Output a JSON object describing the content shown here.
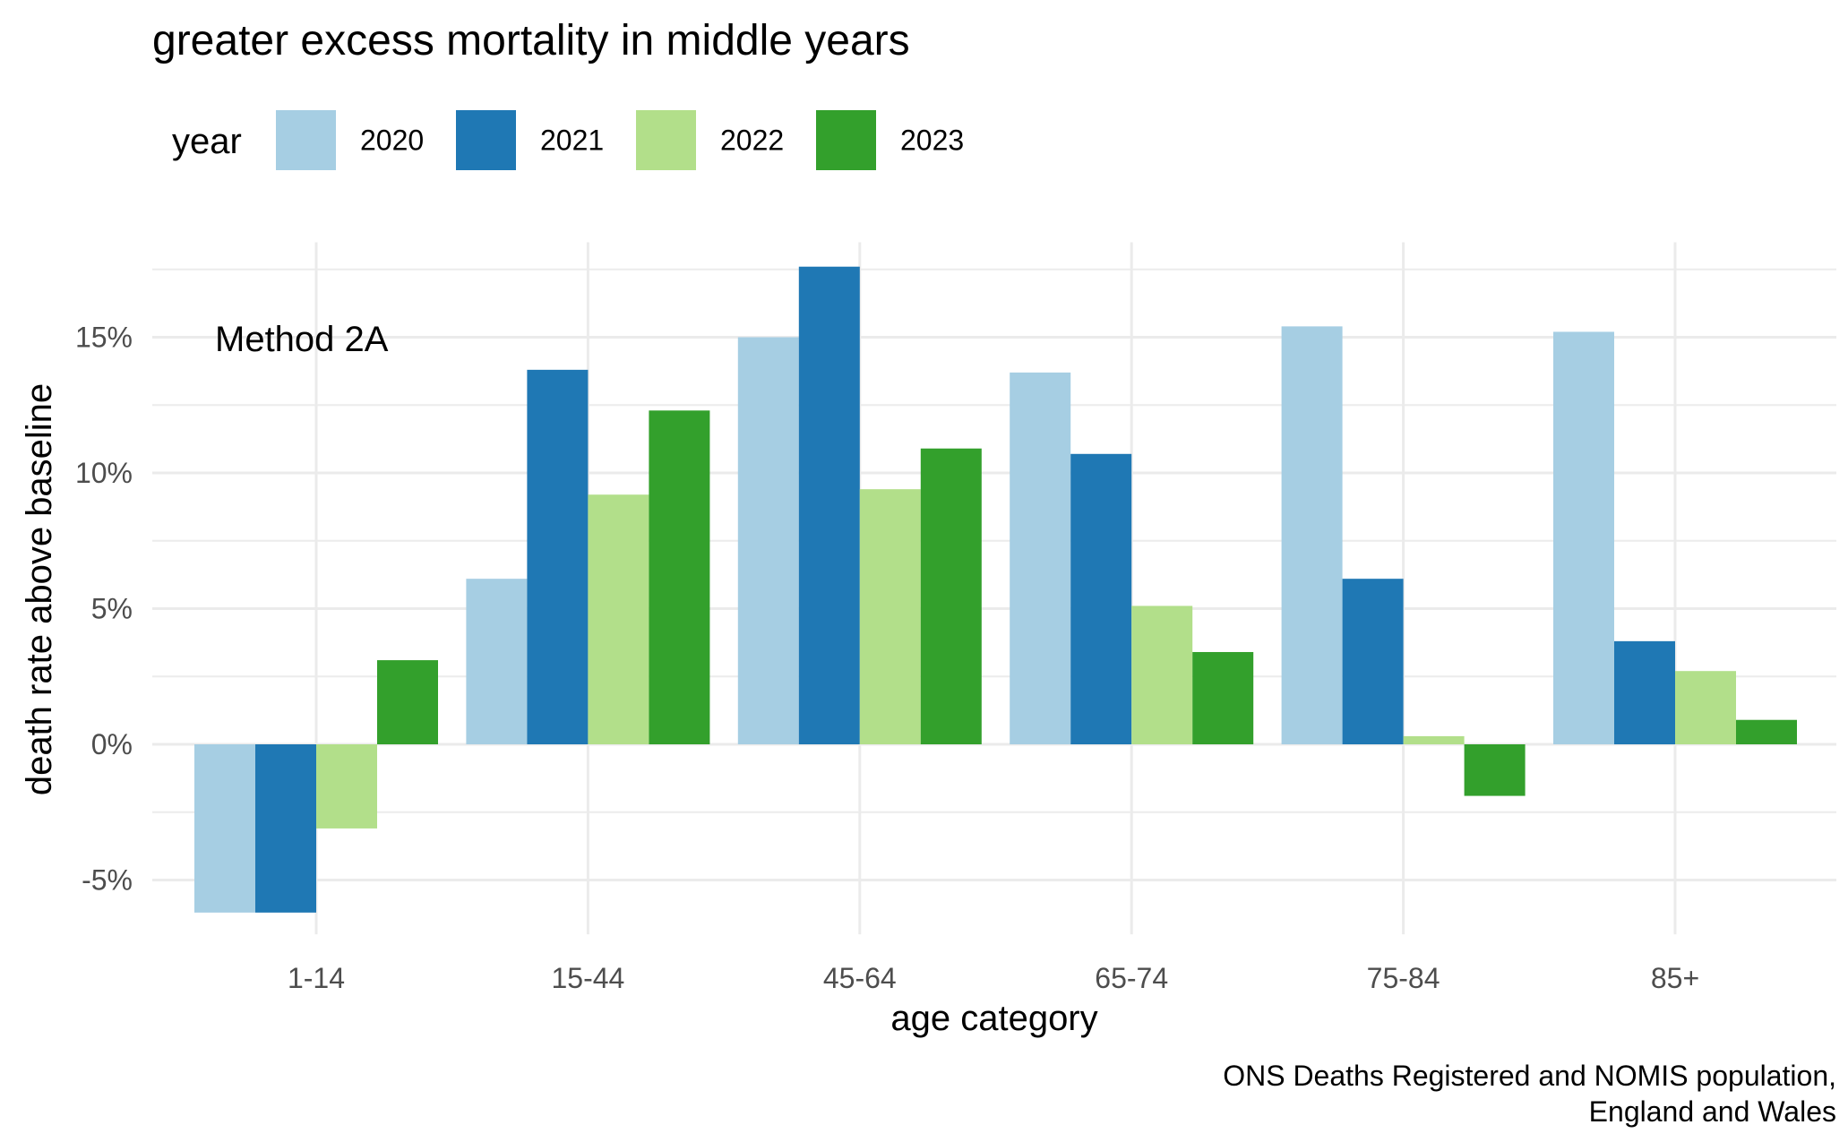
{
  "chart_data": {
    "type": "bar",
    "title": "greater excess mortality in middle years",
    "xlabel": "age category",
    "ylabel": "death rate above baseline",
    "annotation": "Method 2A",
    "caption": [
      "ONS Deaths Registered and NOMIS population,",
      "England and Wales"
    ],
    "legend": {
      "title": "year",
      "position": "top-left"
    },
    "categories": [
      "1-14",
      "15-44",
      "45-64",
      "65-74",
      "75-84",
      "85+"
    ],
    "series": [
      {
        "name": "2020",
        "color": "#a6cee3",
        "values": [
          -6.2,
          6.1,
          15.0,
          13.7,
          15.4,
          15.2
        ]
      },
      {
        "name": "2021",
        "color": "#1f78b4",
        "values": [
          -6.2,
          13.8,
          17.6,
          10.7,
          6.1,
          3.8
        ]
      },
      {
        "name": "2022",
        "color": "#b2df8a",
        "values": [
          -3.1,
          9.2,
          9.4,
          5.1,
          0.3,
          2.7
        ]
      },
      {
        "name": "2023",
        "color": "#33a02c",
        "values": [
          3.1,
          12.3,
          10.9,
          3.4,
          -1.9,
          0.9
        ]
      }
    ],
    "ylim": [
      -7,
      18.5
    ],
    "yticks": [
      -5,
      0,
      5,
      10,
      15
    ],
    "ytick_labels": [
      "-5%",
      "0%",
      "5%",
      "10%",
      "15%"
    ],
    "grid": true
  }
}
